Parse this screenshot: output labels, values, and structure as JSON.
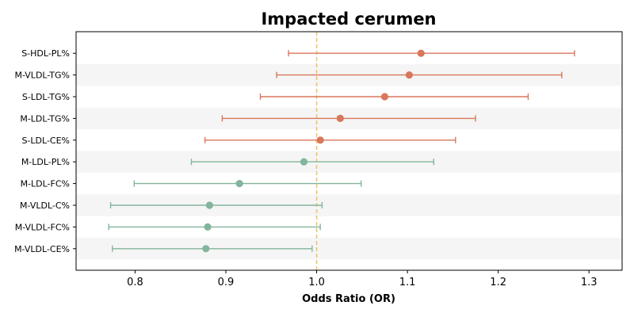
{
  "chart_data": {
    "type": "forest",
    "title": "Impacted cerumen",
    "xlabel": "Odds Ratio (OR)",
    "ylabel": "",
    "xlim": [
      0.735,
      1.3365
    ],
    "xticks": [
      0.8,
      0.9,
      1.0,
      1.1,
      1.2,
      1.3
    ],
    "xtick_labels": [
      "0.8",
      "0.9",
      "1.0",
      "1.1",
      "1.2",
      "1.3"
    ],
    "reference_line": 1.0,
    "grid": false,
    "banded_rows": true,
    "colors": {
      "positive": "#d9775b",
      "negative": "#82b59b",
      "reference": "#f2c46e",
      "band": "#f5f5f5"
    },
    "rows": [
      {
        "label": "S-HDL-PL%",
        "or": 1.115,
        "lower": 0.969,
        "upper": 1.284,
        "group": "positive"
      },
      {
        "label": "M-VLDL-TG%",
        "or": 1.102,
        "lower": 0.956,
        "upper": 1.27,
        "group": "positive"
      },
      {
        "label": "S-LDL-TG%",
        "or": 1.075,
        "lower": 0.938,
        "upper": 1.233,
        "group": "positive"
      },
      {
        "label": "M-LDL-TG%",
        "or": 1.026,
        "lower": 0.896,
        "upper": 1.175,
        "group": "positive"
      },
      {
        "label": "S-LDL-CE%",
        "or": 1.004,
        "lower": 0.877,
        "upper": 1.153,
        "group": "positive"
      },
      {
        "label": "M-LDL-PL%",
        "or": 0.986,
        "lower": 0.862,
        "upper": 1.129,
        "group": "negative"
      },
      {
        "label": "M-LDL-FC%",
        "or": 0.915,
        "lower": 0.799,
        "upper": 1.049,
        "group": "negative"
      },
      {
        "label": "M-VLDL-C%",
        "or": 0.882,
        "lower": 0.773,
        "upper": 1.006,
        "group": "negative"
      },
      {
        "label": "M-VLDL-FC%",
        "or": 0.88,
        "lower": 0.771,
        "upper": 1.004,
        "group": "negative"
      },
      {
        "label": "M-VLDL-CE%",
        "or": 0.878,
        "lower": 0.775,
        "upper": 0.995,
        "group": "negative"
      }
    ]
  }
}
